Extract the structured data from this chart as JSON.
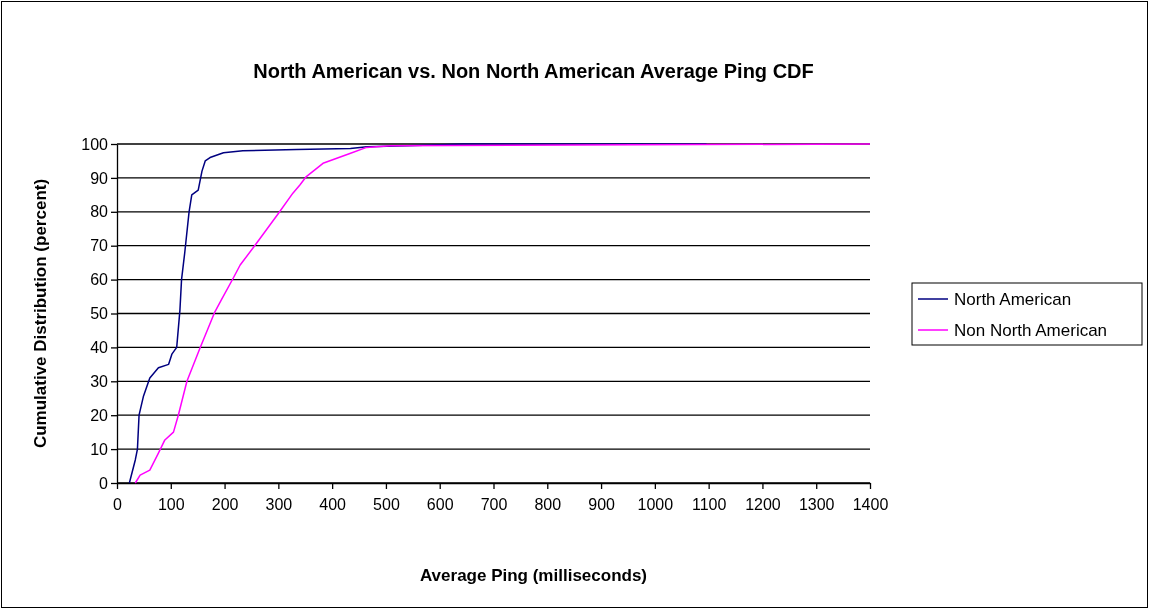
{
  "chart_data": {
    "type": "line",
    "title": "North American vs. Non North American Average Ping CDF",
    "xlabel": "Average Ping (milliseconds)",
    "ylabel": "Cumulative Distribution (percent)",
    "xlim": [
      0,
      1400
    ],
    "xticks": [
      0,
      100,
      200,
      300,
      400,
      500,
      600,
      700,
      800,
      900,
      1000,
      1100,
      1200,
      1300,
      1400
    ],
    "ylim": [
      0,
      100
    ],
    "yticks": [
      0,
      10,
      20,
      30,
      40,
      50,
      60,
      70,
      80,
      90,
      100
    ],
    "grid": "y",
    "legend": "right",
    "marker": "none",
    "line_style": "solid",
    "series": [
      {
        "name": "North American",
        "color": "#000080",
        "x": [
          23,
          34,
          38,
          41,
          49,
          61,
          77,
          96,
          102,
          111,
          117,
          120,
          126,
          134,
          139,
          151,
          158,
          164,
          173,
          198,
          234,
          334,
          434,
          465,
          539,
          645,
          1096
        ],
        "values": [
          0,
          6.8,
          10,
          20,
          25.5,
          31,
          34,
          35,
          38,
          40,
          51,
          60,
          68,
          80,
          85,
          86.4,
          92,
          95,
          96,
          97.4,
          98,
          98.4,
          98.7,
          99.2,
          99.5,
          100,
          100
        ]
      },
      {
        "name": "Non North American",
        "color": "#ff00ff",
        "x": [
          34,
          43,
          61,
          77,
          89,
          105,
          114,
          130,
          154,
          182,
          194,
          216,
          229,
          257,
          300,
          327,
          340,
          352,
          383,
          433,
          464,
          508,
          1400
        ],
        "values": [
          0,
          2.3,
          3.8,
          8.8,
          12.7,
          15,
          20,
          30,
          39.7,
          50.5,
          54,
          60.4,
          64.3,
          70.2,
          79.5,
          85.5,
          87.9,
          90.4,
          94.3,
          97.2,
          99,
          99.5,
          100
        ]
      }
    ]
  }
}
